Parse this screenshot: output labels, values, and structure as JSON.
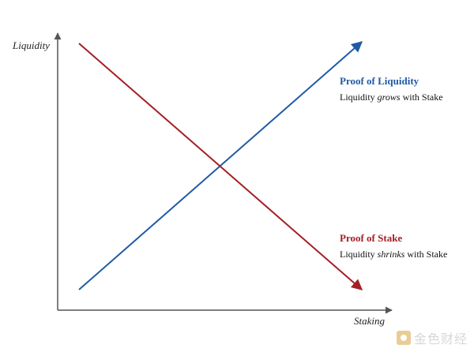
{
  "axes": {
    "y_label": "Liquidity",
    "x_label": "Staking",
    "color": "#555555"
  },
  "series": {
    "pol": {
      "title": "Proof of Liquidity",
      "desc_before": "Liquidity ",
      "desc_emph": "grows",
      "desc_after": " with Stake",
      "color": "#1f5aa6"
    },
    "pos": {
      "title": "Proof of Stake",
      "desc_before": "Liquidity ",
      "desc_emph": "shrinks",
      "desc_after": " with Stake",
      "color": "#a31f24"
    }
  },
  "watermark": {
    "text": "金色财经",
    "icon": "gold-logo-icon"
  }
}
